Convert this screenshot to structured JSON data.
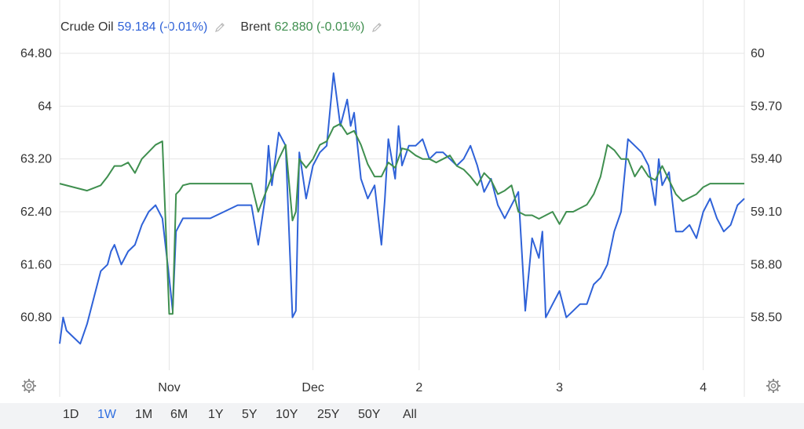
{
  "legend": {
    "series1_name": "Crude Oil",
    "series1_value": "59.184 (-0.01%)",
    "series2_name": "Brent",
    "series2_value": "62.880 (-0.01%)"
  },
  "colors": {
    "crude": "#2f62d8",
    "brent": "#3f8f4f",
    "grid": "#e6e6e6",
    "axis_text": "#333333"
  },
  "range_buttons": [
    "1D",
    "1W",
    "1M",
    "6M",
    "1Y",
    "5Y",
    "10Y",
    "25Y",
    "50Y",
    "All"
  ],
  "active_range": "1W",
  "icons": [
    "gear-icon-left",
    "gear-icon-right",
    "pencil-icon"
  ],
  "chart_data": {
    "type": "line",
    "left_axis": {
      "ticks": [
        "64.80",
        "64",
        "63.20",
        "62.40",
        "61.60",
        "60.80"
      ],
      "range": [
        60.0,
        64.8
      ]
    },
    "right_axis": {
      "ticks": [
        "60",
        "59.70",
        "59.40",
        "59.10",
        "58.80",
        "58.50"
      ],
      "range": [
        58.2,
        60.0
      ]
    },
    "x_axis": {
      "ticks": [
        {
          "label": "Nov",
          "x": 0.16
        },
        {
          "label": "Dec",
          "x": 0.37
        },
        {
          "label": "2",
          "x": 0.525
        },
        {
          "label": "3",
          "x": 0.73
        },
        {
          "label": "4",
          "x": 0.94
        }
      ],
      "range": [
        0,
        1
      ]
    },
    "grid": true,
    "series": [
      {
        "name": "Crude Oil",
        "axis": "left",
        "x": [
          0.0,
          0.005,
          0.01,
          0.02,
          0.03,
          0.04,
          0.05,
          0.06,
          0.07,
          0.075,
          0.08,
          0.09,
          0.1,
          0.11,
          0.12,
          0.13,
          0.14,
          0.15,
          0.16,
          0.165,
          0.17,
          0.18,
          0.19,
          0.2,
          0.21,
          0.22,
          0.24,
          0.26,
          0.28,
          0.29,
          0.3,
          0.305,
          0.31,
          0.32,
          0.33,
          0.34,
          0.345,
          0.35,
          0.36,
          0.37,
          0.38,
          0.39,
          0.4,
          0.41,
          0.42,
          0.425,
          0.43,
          0.44,
          0.45,
          0.46,
          0.47,
          0.475,
          0.48,
          0.49,
          0.495,
          0.5,
          0.51,
          0.52,
          0.53,
          0.54,
          0.55,
          0.56,
          0.57,
          0.58,
          0.59,
          0.6,
          0.61,
          0.62,
          0.63,
          0.64,
          0.65,
          0.66,
          0.67,
          0.68,
          0.69,
          0.7,
          0.705,
          0.71,
          0.72,
          0.73,
          0.74,
          0.75,
          0.76,
          0.77,
          0.78,
          0.79,
          0.8,
          0.81,
          0.82,
          0.83,
          0.84,
          0.85,
          0.86,
          0.87,
          0.875,
          0.88,
          0.89,
          0.9,
          0.91,
          0.92,
          0.93,
          0.94,
          0.95,
          0.96,
          0.97,
          0.98,
          0.99,
          1.0
        ],
        "values": [
          60.4,
          60.8,
          60.6,
          60.5,
          60.4,
          60.7,
          61.1,
          61.5,
          61.6,
          61.8,
          61.9,
          61.6,
          61.8,
          61.9,
          62.2,
          62.4,
          62.5,
          62.3,
          61.4,
          60.9,
          62.1,
          62.3,
          62.3,
          62.3,
          62.3,
          62.3,
          62.4,
          62.5,
          62.5,
          61.9,
          62.6,
          63.4,
          62.8,
          63.6,
          63.4,
          60.8,
          60.9,
          63.3,
          62.6,
          63.1,
          63.3,
          63.4,
          64.5,
          63.7,
          64.1,
          63.7,
          63.9,
          62.9,
          62.6,
          62.8,
          61.9,
          62.6,
          63.5,
          62.9,
          63.7,
          63.1,
          63.4,
          63.4,
          63.5,
          63.2,
          63.3,
          63.3,
          63.2,
          63.1,
          63.2,
          63.4,
          63.1,
          62.7,
          62.9,
          62.5,
          62.3,
          62.5,
          62.7,
          60.9,
          62.0,
          61.7,
          62.1,
          60.8,
          61.0,
          61.2,
          60.8,
          60.9,
          61.0,
          61.0,
          61.3,
          61.4,
          61.6,
          62.1,
          62.4,
          63.5,
          63.4,
          63.3,
          63.1,
          62.5,
          63.2,
          62.8,
          63.0,
          62.1,
          62.1,
          62.2,
          62.0,
          62.4,
          62.6,
          62.3,
          62.1,
          62.2,
          62.5,
          62.6
        ]
      },
      {
        "name": "Brent",
        "axis": "right",
        "x": [
          0.0,
          0.02,
          0.04,
          0.06,
          0.07,
          0.08,
          0.09,
          0.1,
          0.11,
          0.12,
          0.13,
          0.14,
          0.15,
          0.16,
          0.165,
          0.17,
          0.175,
          0.18,
          0.19,
          0.2,
          0.22,
          0.24,
          0.26,
          0.28,
          0.29,
          0.3,
          0.31,
          0.32,
          0.33,
          0.34,
          0.345,
          0.35,
          0.36,
          0.37,
          0.38,
          0.39,
          0.4,
          0.41,
          0.42,
          0.43,
          0.44,
          0.45,
          0.46,
          0.47,
          0.48,
          0.49,
          0.5,
          0.51,
          0.52,
          0.53,
          0.54,
          0.55,
          0.56,
          0.57,
          0.58,
          0.59,
          0.6,
          0.61,
          0.62,
          0.63,
          0.64,
          0.65,
          0.66,
          0.67,
          0.68,
          0.69,
          0.7,
          0.71,
          0.72,
          0.73,
          0.74,
          0.75,
          0.76,
          0.77,
          0.78,
          0.79,
          0.8,
          0.81,
          0.82,
          0.83,
          0.84,
          0.85,
          0.86,
          0.87,
          0.88,
          0.89,
          0.9,
          0.91,
          0.92,
          0.93,
          0.94,
          0.95,
          0.96,
          0.97,
          0.98,
          0.99,
          1.0
        ],
        "values": [
          59.26,
          59.24,
          59.22,
          59.25,
          59.3,
          59.36,
          59.36,
          59.38,
          59.32,
          59.4,
          59.44,
          59.48,
          59.5,
          58.52,
          58.52,
          59.2,
          59.22,
          59.25,
          59.26,
          59.26,
          59.26,
          59.26,
          59.26,
          59.26,
          59.1,
          59.2,
          59.3,
          59.4,
          59.48,
          59.05,
          59.1,
          59.4,
          59.35,
          59.4,
          59.48,
          59.5,
          59.58,
          59.6,
          59.54,
          59.56,
          59.48,
          59.37,
          59.3,
          59.3,
          59.38,
          59.35,
          59.46,
          59.45,
          59.42,
          59.4,
          59.4,
          59.38,
          59.4,
          59.42,
          59.36,
          59.34,
          59.3,
          59.25,
          59.32,
          59.28,
          59.2,
          59.22,
          59.25,
          59.1,
          59.08,
          59.08,
          59.06,
          59.08,
          59.1,
          59.03,
          59.1,
          59.1,
          59.12,
          59.14,
          59.2,
          59.3,
          59.48,
          59.45,
          59.4,
          59.4,
          59.3,
          59.36,
          59.3,
          59.28,
          59.36,
          59.28,
          59.2,
          59.16,
          59.18,
          59.2,
          59.24,
          59.26,
          59.26,
          59.26,
          59.26,
          59.26,
          59.26
        ]
      }
    ]
  }
}
